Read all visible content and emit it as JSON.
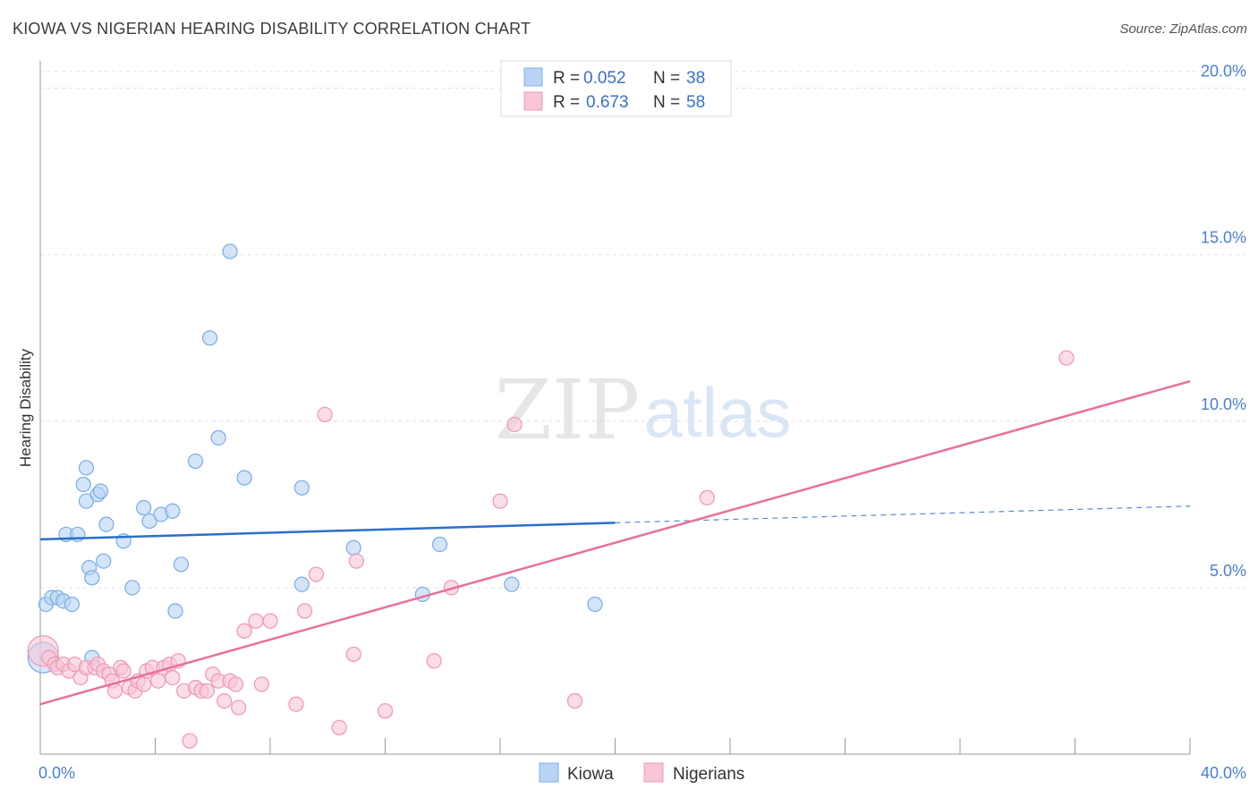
{
  "header": {
    "title": "KIOWA VS NIGERIAN HEARING DISABILITY CORRELATION CHART",
    "source": "Source: ZipAtlas.com"
  },
  "watermark": {
    "zip": "ZIP",
    "atlas": "atlas"
  },
  "chart_data": {
    "type": "scatter",
    "title": "KIOWA VS NIGERIAN HEARING DISABILITY CORRELATION CHART",
    "xlabel": "",
    "ylabel": "Hearing Disability",
    "xlim": [
      0,
      40
    ],
    "ylim": [
      0,
      20.5
    ],
    "x_tick_labels": [
      "0.0%",
      "40.0%"
    ],
    "y_ticks": [
      5,
      10,
      15,
      20
    ],
    "y_tick_labels": [
      "5.0%",
      "10.0%",
      "15.0%",
      "20.0%"
    ],
    "grid": true,
    "legend": {
      "placement": "top-center",
      "entries": [
        {
          "r_label": "R =",
          "r_value": "0.052",
          "n_label": "N =",
          "n_value": "38"
        },
        {
          "r_label": "R =",
          "r_value": "0.673",
          "n_label": "N =",
          "n_value": "58"
        }
      ]
    },
    "series": [
      {
        "name": "Kiowa",
        "color": "#7fb0ea",
        "fill": "#b8d3f4",
        "line_color": "#2a6fcc",
        "trend": {
          "x0": 0,
          "y0": 6.45,
          "x1": 20,
          "y1": 6.95,
          "dash_x1": 40,
          "dash_y1": 7.45
        },
        "points": [
          [
            0.2,
            4.5
          ],
          [
            0.4,
            4.7
          ],
          [
            0.6,
            4.7
          ],
          [
            0.8,
            4.6
          ],
          [
            0.9,
            6.6
          ],
          [
            1.1,
            4.5
          ],
          [
            1.3,
            6.6
          ],
          [
            1.5,
            8.1
          ],
          [
            1.6,
            8.6
          ],
          [
            1.6,
            7.6
          ],
          [
            1.7,
            5.6
          ],
          [
            1.8,
            5.3
          ],
          [
            1.8,
            2.9
          ],
          [
            2.0,
            7.8
          ],
          [
            2.1,
            7.9
          ],
          [
            2.2,
            5.8
          ],
          [
            2.3,
            6.9
          ],
          [
            2.9,
            6.4
          ],
          [
            3.2,
            5.0
          ],
          [
            3.6,
            7.4
          ],
          [
            3.8,
            7.0
          ],
          [
            4.2,
            7.2
          ],
          [
            4.6,
            7.3
          ],
          [
            4.7,
            4.3
          ],
          [
            4.9,
            5.7
          ],
          [
            5.4,
            8.8
          ],
          [
            5.9,
            12.5
          ],
          [
            6.2,
            9.5
          ],
          [
            6.6,
            15.1
          ],
          [
            7.1,
            8.3
          ],
          [
            9.1,
            8.0
          ],
          [
            9.1,
            5.1
          ],
          [
            10.9,
            6.2
          ],
          [
            13.3,
            4.8
          ],
          [
            13.9,
            6.3
          ],
          [
            16.4,
            5.1
          ],
          [
            19.3,
            4.5
          ],
          [
            0.1,
            2.9
          ]
        ]
      },
      {
        "name": "Nigerians",
        "color": "#f09ab8",
        "fill": "#f8c6d6",
        "line_color": "#e8709a",
        "trend": {
          "x0": 0,
          "y0": 1.5,
          "x1": 40,
          "y1": 11.2
        },
        "points": [
          [
            0.1,
            3.1
          ],
          [
            0.3,
            2.9
          ],
          [
            0.5,
            2.7
          ],
          [
            0.6,
            2.6
          ],
          [
            0.8,
            2.7
          ],
          [
            1.0,
            2.5
          ],
          [
            1.2,
            2.7
          ],
          [
            1.4,
            2.3
          ],
          [
            1.6,
            2.6
          ],
          [
            1.9,
            2.6
          ],
          [
            2.0,
            2.7
          ],
          [
            2.2,
            2.5
          ],
          [
            2.4,
            2.4
          ],
          [
            2.5,
            2.2
          ],
          [
            2.6,
            1.9
          ],
          [
            2.8,
            2.6
          ],
          [
            2.9,
            2.5
          ],
          [
            3.1,
            2.0
          ],
          [
            3.3,
            1.9
          ],
          [
            3.4,
            2.2
          ],
          [
            3.6,
            2.1
          ],
          [
            3.7,
            2.5
          ],
          [
            3.9,
            2.6
          ],
          [
            4.1,
            2.2
          ],
          [
            4.3,
            2.6
          ],
          [
            4.5,
            2.7
          ],
          [
            4.6,
            2.3
          ],
          [
            4.8,
            2.8
          ],
          [
            5.0,
            1.9
          ],
          [
            5.2,
            0.4
          ],
          [
            5.4,
            2.0
          ],
          [
            5.6,
            1.9
          ],
          [
            5.8,
            1.9
          ],
          [
            6.0,
            2.4
          ],
          [
            6.2,
            2.2
          ],
          [
            6.4,
            1.6
          ],
          [
            6.6,
            2.2
          ],
          [
            6.8,
            2.1
          ],
          [
            6.9,
            1.4
          ],
          [
            7.1,
            3.7
          ],
          [
            7.5,
            4.0
          ],
          [
            7.7,
            2.1
          ],
          [
            8.0,
            4.0
          ],
          [
            8.9,
            1.5
          ],
          [
            9.2,
            4.3
          ],
          [
            9.6,
            5.4
          ],
          [
            9.9,
            10.2
          ],
          [
            10.4,
            0.8
          ],
          [
            10.9,
            3.0
          ],
          [
            11.0,
            5.8
          ],
          [
            12.0,
            1.3
          ],
          [
            13.7,
            2.8
          ],
          [
            14.3,
            5.0
          ],
          [
            16.0,
            7.6
          ],
          [
            16.5,
            9.9
          ],
          [
            18.6,
            1.6
          ],
          [
            23.2,
            7.7
          ],
          [
            35.7,
            11.9
          ]
        ]
      }
    ]
  }
}
